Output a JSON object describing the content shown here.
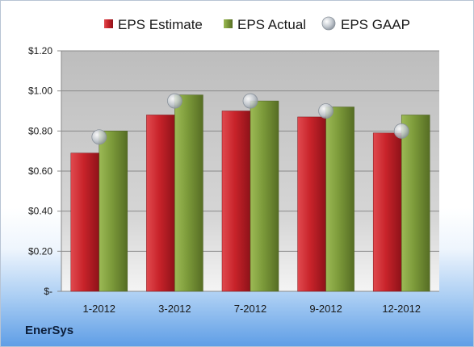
{
  "company": "EnerSys",
  "colors": {
    "estimate": "#c8232a",
    "actual": "#7c9a3a",
    "gaap": "#b9c0c8"
  },
  "chart_data": {
    "type": "bar",
    "categories": [
      "1-2012",
      "3-2012",
      "7-2012",
      "9-2012",
      "12-2012"
    ],
    "series": [
      {
        "name": "EPS Estimate",
        "type": "bar",
        "values": [
          0.69,
          0.88,
          0.9,
          0.87,
          0.79
        ]
      },
      {
        "name": "EPS Actual",
        "type": "bar",
        "values": [
          0.8,
          0.98,
          0.95,
          0.92,
          0.88
        ]
      },
      {
        "name": "EPS GAAP",
        "type": "scatter",
        "values": [
          0.77,
          0.95,
          0.95,
          0.9,
          0.8
        ]
      }
    ],
    "yticks": [
      "$-",
      "$0.20",
      "$0.40",
      "$0.60",
      "$0.80",
      "$1.00",
      "$1.20"
    ],
    "ylim": [
      0,
      1.2
    ],
    "grid": true,
    "legend": "top"
  }
}
